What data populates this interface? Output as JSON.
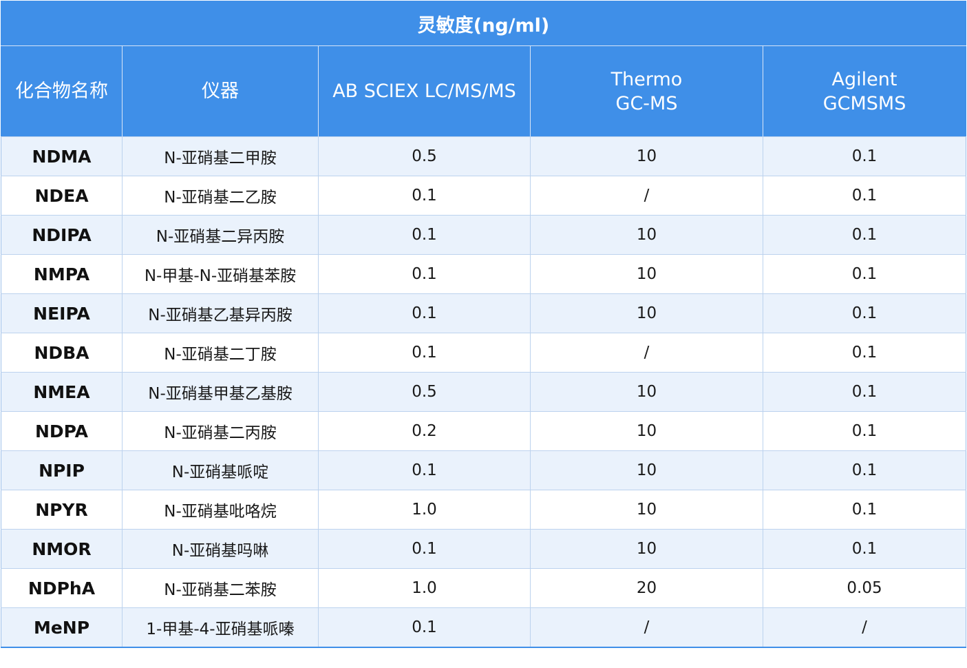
{
  "title": "灵敏度(ng/ml)",
  "headers": {
    "compound": "化合物名称",
    "instrument": "仪器",
    "col_ab_sciex": "AB SCIEX LC/MS/MS",
    "col_thermo_line1": "Thermo",
    "col_thermo_line2": "GC-MS",
    "col_agilent_line1": "Agilent",
    "col_agilent_line2": "GCMSMS"
  },
  "rows": [
    {
      "abbr": "NDMA",
      "name": "N-亚硝基二甲胺",
      "ab_sciex": "0.5",
      "thermo": "10",
      "agilent": "0.1"
    },
    {
      "abbr": "NDEA",
      "name": "N-亚硝基二乙胺",
      "ab_sciex": "0.1",
      "thermo": "/",
      "agilent": "0.1"
    },
    {
      "abbr": "NDIPA",
      "name": "N-亚硝基二异丙胺",
      "ab_sciex": "0.1",
      "thermo": "10",
      "agilent": "0.1"
    },
    {
      "abbr": "NMPA",
      "name": "N-甲基-N-亚硝基苯胺",
      "ab_sciex": "0.1",
      "thermo": "10",
      "agilent": "0.1"
    },
    {
      "abbr": "NEIPA",
      "name": "N-亚硝基乙基异丙胺",
      "ab_sciex": "0.1",
      "thermo": "10",
      "agilent": "0.1"
    },
    {
      "abbr": "NDBA",
      "name": "N-亚硝基二丁胺",
      "ab_sciex": "0.1",
      "thermo": "/",
      "agilent": "0.1"
    },
    {
      "abbr": "NMEA",
      "name": "N-亚硝基甲基乙基胺",
      "ab_sciex": "0.5",
      "thermo": "10",
      "agilent": "0.1"
    },
    {
      "abbr": "NDPA",
      "name": "N-亚硝基二丙胺",
      "ab_sciex": "0.2",
      "thermo": "10",
      "agilent": "0.1"
    },
    {
      "abbr": "NPIP",
      "name": "N-亚硝基哌啶",
      "ab_sciex": "0.1",
      "thermo": "10",
      "agilent": "0.1"
    },
    {
      "abbr": "NPYR",
      "name": "N-亚硝基吡咯烷",
      "ab_sciex": "1.0",
      "thermo": "10",
      "agilent": "0.1"
    },
    {
      "abbr": "NMOR",
      "name": "N-亚硝基吗啉",
      "ab_sciex": "0.1",
      "thermo": "10",
      "agilent": "0.1"
    },
    {
      "abbr": "NDPhA",
      "name": "N-亚硝基二苯胺",
      "ab_sciex": "1.0",
      "thermo": "20",
      "agilent": "0.05"
    },
    {
      "abbr": "MeNP",
      "name": "1-甲基-4-亚硝基哌嗪",
      "ab_sciex": "0.1",
      "thermo": "/",
      "agilent": "/"
    }
  ],
  "colors": {
    "header_bg": "#3f8fe8",
    "row_alt_bg": "#eaf2fc",
    "grid": "#bcd2ee"
  }
}
